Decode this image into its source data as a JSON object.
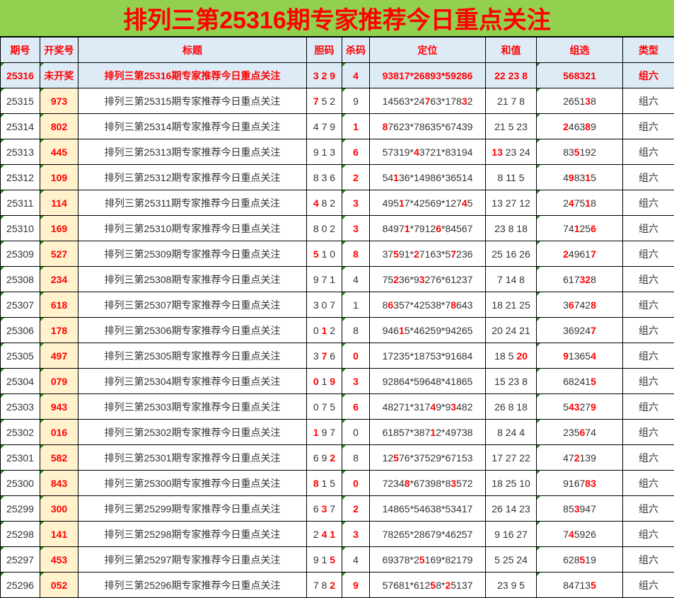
{
  "title": "排列三第25316期专家推荐今日重点关注",
  "headers": [
    "期号",
    "开奖号",
    "标题",
    "胆码",
    "杀码",
    "定位",
    "和值",
    "组选",
    "类型"
  ],
  "colors": {
    "title_bg": "#92d050",
    "header_bg": "#ddebf7",
    "draw_bg": "#fff2cc",
    "highlight": "#ff0000"
  },
  "rows": [
    {
      "issue": "25316",
      "draw": "未开奖",
      "title": "排列三第25316期专家推荐今日重点关注",
      "dan": {
        "t": "3 2 9",
        "r": []
      },
      "sha": {
        "t": "4",
        "r": []
      },
      "dw": {
        "t": "93817*26893*59286",
        "r": []
      },
      "hz": {
        "t": "22 23 8",
        "r": []
      },
      "zx": {
        "t": "568321",
        "r": []
      },
      "type": "组六"
    },
    {
      "issue": "25315",
      "draw": "973",
      "title": "排列三第25315期专家推荐今日重点关注",
      "dan": {
        "t": "7 5 2",
        "r": [
          0
        ]
      },
      "sha": {
        "t": "9",
        "r": []
      },
      "dw": {
        "t": "14563*24763*17832",
        "r": [
          8,
          15
        ]
      },
      "hz": {
        "t": "21 7 8",
        "r": []
      },
      "zx": {
        "t": "265138",
        "r": [
          4
        ]
      },
      "type": "组六"
    },
    {
      "issue": "25314",
      "draw": "802",
      "title": "排列三第25314期专家推荐今日重点关注",
      "dan": {
        "t": "4 7 9",
        "r": []
      },
      "sha": {
        "t": "1",
        "r": [
          0
        ]
      },
      "dw": {
        "t": "87623*78635*67439",
        "r": [
          0
        ]
      },
      "hz": {
        "t": "21 5 23",
        "r": []
      },
      "zx": {
        "t": "246389",
        "r": [
          0,
          4
        ]
      },
      "type": "组六"
    },
    {
      "issue": "25313",
      "draw": "445",
      "title": "排列三第25313期专家推荐今日重点关注",
      "dan": {
        "t": "9 1 3",
        "r": []
      },
      "sha": {
        "t": "6",
        "r": [
          0
        ]
      },
      "dw": {
        "t": "57319*43721*83194",
        "r": [
          6
        ]
      },
      "hz": {
        "t": "13 23 24",
        "r": [
          0,
          1
        ]
      },
      "zx": {
        "t": "835192",
        "r": [
          2
        ]
      },
      "type": "组六"
    },
    {
      "issue": "25312",
      "draw": "109",
      "title": "排列三第25312期专家推荐今日重点关注",
      "dan": {
        "t": "8 3 6",
        "r": []
      },
      "sha": {
        "t": "2",
        "r": [
          0
        ]
      },
      "dw": {
        "t": "54136*14986*36514",
        "r": [
          2
        ]
      },
      "hz": {
        "t": "8 11 5",
        "r": []
      },
      "zx": {
        "t": "498315",
        "r": [
          1,
          4
        ]
      },
      "type": "组六"
    },
    {
      "issue": "25311",
      "draw": "114",
      "title": "排列三第25311期专家推荐今日重点关注",
      "dan": {
        "t": "4 8 2",
        "r": [
          0
        ]
      },
      "sha": {
        "t": "3",
        "r": [
          0
        ]
      },
      "dw": {
        "t": "49517*42569*12745",
        "r": [
          3,
          15
        ]
      },
      "hz": {
        "t": "13 27 12",
        "r": []
      },
      "zx": {
        "t": "247518",
        "r": [
          1,
          4
        ]
      },
      "type": "组六"
    },
    {
      "issue": "25310",
      "draw": "169",
      "title": "排列三第25310期专家推荐今日重点关注",
      "dan": {
        "t": "8 0 2",
        "r": []
      },
      "sha": {
        "t": "3",
        "r": [
          0
        ]
      },
      "dw": {
        "t": "84971*79126*84567",
        "r": [
          4,
          10
        ]
      },
      "hz": {
        "t": "23 8 18",
        "r": []
      },
      "zx": {
        "t": "741256",
        "r": [
          2,
          5
        ]
      },
      "type": "组六"
    },
    {
      "issue": "25309",
      "draw": "527",
      "title": "排列三第25309期专家推荐今日重点关注",
      "dan": {
        "t": "5 1 0",
        "r": [
          0
        ]
      },
      "sha": {
        "t": "8",
        "r": [
          0
        ]
      },
      "dw": {
        "t": "37591*27163*57236",
        "r": [
          2,
          6,
          13
        ]
      },
      "hz": {
        "t": "25 16 26",
        "r": []
      },
      "zx": {
        "t": "249617",
        "r": [
          0,
          5
        ]
      },
      "type": "组六"
    },
    {
      "issue": "25308",
      "draw": "234",
      "title": "排列三第25308期专家推荐今日重点关注",
      "dan": {
        "t": "9 7 1",
        "r": []
      },
      "sha": {
        "t": "4",
        "r": []
      },
      "dw": {
        "t": "75236*93276*61237",
        "r": [
          2,
          7
        ]
      },
      "hz": {
        "t": "7 14 8",
        "r": []
      },
      "zx": {
        "t": "617328",
        "r": [
          3,
          4
        ]
      },
      "type": "组六"
    },
    {
      "issue": "25307",
      "draw": "618",
      "title": "排列三第25307期专家推荐今日重点关注",
      "dan": {
        "t": "3 0 7",
        "r": []
      },
      "sha": {
        "t": "1",
        "r": []
      },
      "dw": {
        "t": "86357*42538*78643",
        "r": [
          1,
          13
        ]
      },
      "hz": {
        "t": "18 21 25",
        "r": []
      },
      "zx": {
        "t": "367428",
        "r": [
          1,
          5
        ]
      },
      "type": "组六"
    },
    {
      "issue": "25306",
      "draw": "178",
      "title": "排列三第25306期专家推荐今日重点关注",
      "dan": {
        "t": "0 1 2",
        "r": [
          2
        ]
      },
      "sha": {
        "t": "8",
        "r": []
      },
      "dw": {
        "t": "94615*46259*94265",
        "r": [
          3
        ]
      },
      "hz": {
        "t": "20 24 21",
        "r": []
      },
      "zx": {
        "t": "369247",
        "r": [
          5
        ]
      },
      "type": "组六"
    },
    {
      "issue": "25305",
      "draw": "497",
      "title": "排列三第25305期专家推荐今日重点关注",
      "dan": {
        "t": "3 7 6",
        "r": [
          2
        ]
      },
      "sha": {
        "t": "0",
        "r": [
          0
        ]
      },
      "dw": {
        "t": "17235*18753*91684",
        "r": []
      },
      "hz": {
        "t": "18 5 20",
        "r": [
          5,
          6
        ]
      },
      "zx": {
        "t": "913654",
        "r": [
          0,
          5
        ]
      },
      "type": "组六"
    },
    {
      "issue": "25304",
      "draw": "079",
      "title": "排列三第25304期专家推荐今日重点关注",
      "dan": {
        "t": "0 1 9",
        "r": [
          0,
          4
        ]
      },
      "sha": {
        "t": "3",
        "r": [
          0
        ]
      },
      "dw": {
        "t": "92864*59648*41865",
        "r": []
      },
      "hz": {
        "t": "15 23 8",
        "r": []
      },
      "zx": {
        "t": "682415",
        "r": [
          5
        ]
      },
      "type": "组六"
    },
    {
      "issue": "25303",
      "draw": "943",
      "title": "排列三第25303期专家推荐今日重点关注",
      "dan": {
        "t": "0 7 5",
        "r": []
      },
      "sha": {
        "t": "6",
        "r": [
          0
        ]
      },
      "dw": {
        "t": "48271*31749*93482",
        "r": [
          9,
          13
        ]
      },
      "hz": {
        "t": "26 8 18",
        "r": []
      },
      "zx": {
        "t": "543279",
        "r": [
          1,
          2,
          5
        ]
      },
      "type": "组六"
    },
    {
      "issue": "25302",
      "draw": "016",
      "title": "排列三第25302期专家推荐今日重点关注",
      "dan": {
        "t": "1 9 7",
        "r": [
          0
        ]
      },
      "sha": {
        "t": "0",
        "r": []
      },
      "dw": {
        "t": "61857*38712*49738",
        "r": [
          9
        ]
      },
      "hz": {
        "t": "8 24 4",
        "r": []
      },
      "zx": {
        "t": "235674",
        "r": [
          3
        ]
      },
      "type": "组六"
    },
    {
      "issue": "25301",
      "draw": "582",
      "title": "排列三第25301期专家推荐今日重点关注",
      "dan": {
        "t": "6 9 2",
        "r": [
          4
        ]
      },
      "sha": {
        "t": "8",
        "r": []
      },
      "dw": {
        "t": "12576*37529*67153",
        "r": [
          2
        ]
      },
      "hz": {
        "t": "17 27 22",
        "r": []
      },
      "zx": {
        "t": "472139",
        "r": [
          2
        ]
      },
      "type": "组六"
    },
    {
      "issue": "25300",
      "draw": "843",
      "title": "排列三第25300期专家推荐今日重点关注",
      "dan": {
        "t": "8 1 5",
        "r": [
          0
        ]
      },
      "sha": {
        "t": "0",
        "r": [
          0
        ]
      },
      "dw": {
        "t": "72348*67398*83572",
        "r": [
          4,
          13
        ]
      },
      "hz": {
        "t": "18 25 10",
        "r": []
      },
      "zx": {
        "t": "916783",
        "r": [
          4,
          5
        ]
      },
      "type": "组六"
    },
    {
      "issue": "25299",
      "draw": "300",
      "title": "排列三第25299期专家推荐今日重点关注",
      "dan": {
        "t": "6 3 7",
        "r": [
          2
        ]
      },
      "sha": {
        "t": "2",
        "r": [
          0
        ]
      },
      "dw": {
        "t": "14865*54638*53417",
        "r": []
      },
      "hz": {
        "t": "26 14 23",
        "r": []
      },
      "zx": {
        "t": "853947",
        "r": [
          2
        ]
      },
      "type": "组六"
    },
    {
      "issue": "25298",
      "draw": "141",
      "title": "排列三第25298期专家推荐今日重点关注",
      "dan": {
        "t": "2 4 1",
        "r": [
          2,
          4
        ]
      },
      "sha": {
        "t": "3",
        "r": [
          0
        ]
      },
      "dw": {
        "t": "78265*28679*46257",
        "r": []
      },
      "hz": {
        "t": "9 16 27",
        "r": []
      },
      "zx": {
        "t": "745926",
        "r": [
          1
        ]
      },
      "type": "组六"
    },
    {
      "issue": "25297",
      "draw": "453",
      "title": "排列三第25297期专家推荐今日重点关注",
      "dan": {
        "t": "9 1 5",
        "r": [
          4
        ]
      },
      "sha": {
        "t": "4",
        "r": []
      },
      "dw": {
        "t": "69378*25169*82179",
        "r": [
          7
        ]
      },
      "hz": {
        "t": "5 25 24",
        "r": []
      },
      "zx": {
        "t": "628519",
        "r": [
          3
        ]
      },
      "type": "组六"
    },
    {
      "issue": "25296",
      "draw": "052",
      "title": "排列三第25296期专家推荐今日重点关注",
      "dan": {
        "t": "7 8 2",
        "r": [
          4
        ]
      },
      "sha": {
        "t": "9",
        "r": [
          0
        ]
      },
      "dw": {
        "t": "57681*61258*25137",
        "r": [
          9,
          12
        ]
      },
      "hz": {
        "t": "23 9 5",
        "r": []
      },
      "zx": {
        "t": "847135",
        "r": [
          5
        ]
      },
      "type": "组六"
    }
  ]
}
